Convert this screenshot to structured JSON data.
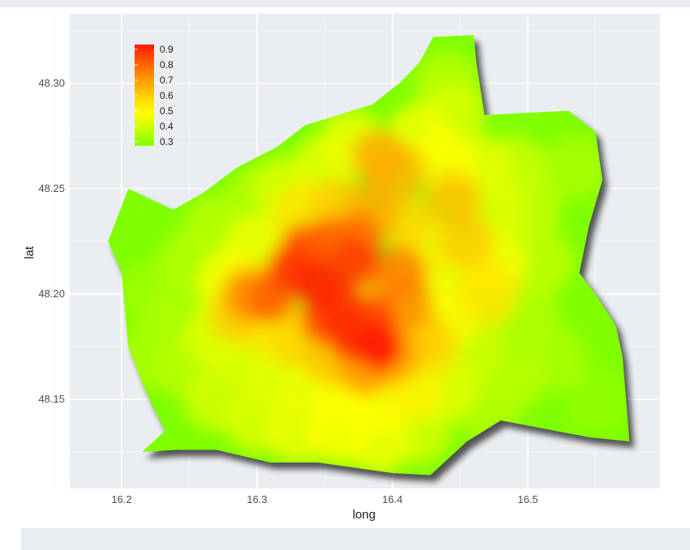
{
  "chart_data": {
    "type": "heatmap",
    "xlabel": "long",
    "ylabel": "lat",
    "x_ticks": [
      "16.2",
      "16.3",
      "16.4",
      "16.5"
    ],
    "x_tick_values": [
      16.2,
      16.3,
      16.4,
      16.5
    ],
    "y_ticks": [
      "48.30",
      "48.25",
      "48.20",
      "48.15"
    ],
    "y_tick_values": [
      48.3,
      48.25,
      48.2,
      48.15
    ],
    "xlim": [
      16.16,
      16.6
    ],
    "ylim": [
      48.11,
      48.33
    ],
    "grid": true,
    "legend": {
      "placement": "top-left",
      "labels": [
        "0.9",
        "0.8",
        "0.7",
        "0.6",
        "0.5",
        "0.4",
        "0.3"
      ],
      "values": [
        0.9,
        0.8,
        0.7,
        0.6,
        0.5,
        0.4,
        0.3
      ],
      "colormap": [
        "#7fff00",
        "#d4ff00",
        "#ffff00",
        "#ffd000",
        "#ff9a00",
        "#ff5a00",
        "#ff1a00"
      ]
    },
    "boundary": [
      [
        16.43,
        48.322
      ],
      [
        16.46,
        48.323
      ],
      [
        16.462,
        48.31
      ],
      [
        16.468,
        48.285
      ],
      [
        16.53,
        48.287
      ],
      [
        16.55,
        48.277
      ],
      [
        16.555,
        48.254
      ],
      [
        16.545,
        48.232
      ],
      [
        16.538,
        48.21
      ],
      [
        16.55,
        48.2
      ],
      [
        16.565,
        48.185
      ],
      [
        16.57,
        48.17
      ],
      [
        16.575,
        48.13
      ],
      [
        16.545,
        48.132
      ],
      [
        16.48,
        48.14
      ],
      [
        16.455,
        48.13
      ],
      [
        16.428,
        48.114
      ],
      [
        16.4,
        48.115
      ],
      [
        16.345,
        48.12
      ],
      [
        16.31,
        48.12
      ],
      [
        16.27,
        48.126
      ],
      [
        16.24,
        48.126
      ],
      [
        16.215,
        48.125
      ],
      [
        16.232,
        48.135
      ],
      [
        16.222,
        48.148
      ],
      [
        16.215,
        48.158
      ],
      [
        16.205,
        48.175
      ],
      [
        16.2,
        48.21
      ],
      [
        16.19,
        48.225
      ],
      [
        16.205,
        48.25
      ],
      [
        16.238,
        48.24
      ],
      [
        16.26,
        48.248
      ],
      [
        16.285,
        48.26
      ],
      [
        16.315,
        48.27
      ],
      [
        16.335,
        48.28
      ],
      [
        16.36,
        48.285
      ],
      [
        16.385,
        48.29
      ],
      [
        16.405,
        48.3
      ],
      [
        16.42,
        48.31
      ],
      [
        16.43,
        48.322
      ]
    ],
    "cells": [
      {
        "x": 16.345,
        "y": 48.205,
        "v": 0.88
      },
      {
        "x": 16.325,
        "y": 48.212,
        "v": 0.85
      },
      {
        "x": 16.36,
        "y": 48.195,
        "v": 0.86
      },
      {
        "x": 16.372,
        "y": 48.215,
        "v": 0.84
      },
      {
        "x": 16.385,
        "y": 48.188,
        "v": 0.83
      },
      {
        "x": 16.39,
        "y": 48.175,
        "v": 0.9
      },
      {
        "x": 16.37,
        "y": 48.18,
        "v": 0.87
      },
      {
        "x": 16.35,
        "y": 48.188,
        "v": 0.82
      },
      {
        "x": 16.31,
        "y": 48.198,
        "v": 0.78
      },
      {
        "x": 16.295,
        "y": 48.2,
        "v": 0.72
      },
      {
        "x": 16.335,
        "y": 48.222,
        "v": 0.8
      },
      {
        "x": 16.355,
        "y": 48.225,
        "v": 0.78
      },
      {
        "x": 16.375,
        "y": 48.227,
        "v": 0.76
      },
      {
        "x": 16.395,
        "y": 48.2,
        "v": 0.62
      },
      {
        "x": 16.405,
        "y": 48.21,
        "v": 0.74
      },
      {
        "x": 16.41,
        "y": 48.195,
        "v": 0.71
      },
      {
        "x": 16.4,
        "y": 48.17,
        "v": 0.68
      },
      {
        "x": 16.42,
        "y": 48.18,
        "v": 0.6
      },
      {
        "x": 16.38,
        "y": 48.165,
        "v": 0.7
      },
      {
        "x": 16.355,
        "y": 48.17,
        "v": 0.62
      },
      {
        "x": 16.33,
        "y": 48.178,
        "v": 0.58
      },
      {
        "x": 16.312,
        "y": 48.185,
        "v": 0.55
      },
      {
        "x": 16.285,
        "y": 48.19,
        "v": 0.6
      },
      {
        "x": 16.385,
        "y": 48.24,
        "v": 0.66
      },
      {
        "x": 16.36,
        "y": 48.242,
        "v": 0.6
      },
      {
        "x": 16.335,
        "y": 48.238,
        "v": 0.55
      },
      {
        "x": 16.41,
        "y": 48.235,
        "v": 0.58
      },
      {
        "x": 16.425,
        "y": 48.22,
        "v": 0.52
      },
      {
        "x": 16.39,
        "y": 48.265,
        "v": 0.66
      },
      {
        "x": 16.405,
        "y": 48.258,
        "v": 0.64
      },
      {
        "x": 16.445,
        "y": 48.245,
        "v": 0.62
      },
      {
        "x": 16.455,
        "y": 48.225,
        "v": 0.6
      },
      {
        "x": 16.43,
        "y": 48.175,
        "v": 0.57
      },
      {
        "x": 16.415,
        "y": 48.155,
        "v": 0.52
      },
      {
        "x": 16.39,
        "y": 48.15,
        "v": 0.5
      },
      {
        "x": 16.365,
        "y": 48.155,
        "v": 0.5
      },
      {
        "x": 16.34,
        "y": 48.155,
        "v": 0.47
      },
      {
        "x": 16.315,
        "y": 48.16,
        "v": 0.45
      },
      {
        "x": 16.295,
        "y": 48.17,
        "v": 0.44
      },
      {
        "x": 16.27,
        "y": 48.18,
        "v": 0.45
      },
      {
        "x": 16.28,
        "y": 48.205,
        "v": 0.5
      },
      {
        "x": 16.3,
        "y": 48.222,
        "v": 0.48
      },
      {
        "x": 16.32,
        "y": 48.25,
        "v": 0.43
      },
      {
        "x": 16.35,
        "y": 48.26,
        "v": 0.45
      },
      {
        "x": 16.37,
        "y": 48.272,
        "v": 0.47
      },
      {
        "x": 16.42,
        "y": 48.275,
        "v": 0.48
      },
      {
        "x": 16.44,
        "y": 48.262,
        "v": 0.5
      },
      {
        "x": 16.465,
        "y": 48.26,
        "v": 0.45
      },
      {
        "x": 16.475,
        "y": 48.24,
        "v": 0.44
      },
      {
        "x": 16.45,
        "y": 48.205,
        "v": 0.45
      },
      {
        "x": 16.44,
        "y": 48.19,
        "v": 0.5
      },
      {
        "x": 16.46,
        "y": 48.175,
        "v": 0.42
      },
      {
        "x": 16.44,
        "y": 48.155,
        "v": 0.45
      },
      {
        "x": 16.42,
        "y": 48.135,
        "v": 0.42
      },
      {
        "x": 16.39,
        "y": 48.13,
        "v": 0.48
      },
      {
        "x": 16.36,
        "y": 48.135,
        "v": 0.5
      },
      {
        "x": 16.33,
        "y": 48.135,
        "v": 0.47
      },
      {
        "x": 16.3,
        "y": 48.14,
        "v": 0.44
      },
      {
        "x": 16.27,
        "y": 48.15,
        "v": 0.42
      },
      {
        "x": 16.25,
        "y": 48.165,
        "v": 0.38
      },
      {
        "x": 16.24,
        "y": 48.19,
        "v": 0.36
      },
      {
        "x": 16.25,
        "y": 48.215,
        "v": 0.37
      },
      {
        "x": 16.27,
        "y": 48.232,
        "v": 0.38
      },
      {
        "x": 16.3,
        "y": 48.245,
        "v": 0.37
      },
      {
        "x": 16.22,
        "y": 48.2,
        "v": 0.34
      },
      {
        "x": 16.22,
        "y": 48.17,
        "v": 0.36
      },
      {
        "x": 16.49,
        "y": 48.26,
        "v": 0.41
      },
      {
        "x": 16.5,
        "y": 48.24,
        "v": 0.4
      },
      {
        "x": 16.51,
        "y": 48.215,
        "v": 0.39
      },
      {
        "x": 16.5,
        "y": 48.19,
        "v": 0.37
      },
      {
        "x": 16.52,
        "y": 48.17,
        "v": 0.36
      },
      {
        "x": 16.49,
        "y": 48.16,
        "v": 0.38
      },
      {
        "x": 16.47,
        "y": 48.145,
        "v": 0.37
      },
      {
        "x": 16.55,
        "y": 48.15,
        "v": 0.33
      },
      {
        "x": 16.535,
        "y": 48.26,
        "v": 0.36
      },
      {
        "x": 16.44,
        "y": 48.3,
        "v": 0.38
      },
      {
        "x": 16.445,
        "y": 48.285,
        "v": 0.43
      },
      {
        "x": 16.475,
        "y": 48.215,
        "v": 0.5
      },
      {
        "x": 16.47,
        "y": 48.2,
        "v": 0.55
      }
    ]
  }
}
